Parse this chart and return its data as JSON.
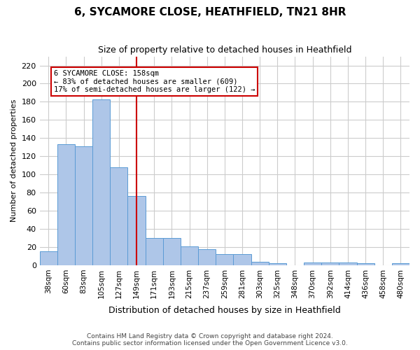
{
  "title": "6, SYCAMORE CLOSE, HEATHFIELD, TN21 8HR",
  "subtitle": "Size of property relative to detached houses in Heathfield",
  "xlabel": "Distribution of detached houses by size in Heathfield",
  "ylabel": "Number of detached properties",
  "categories": [
    "38sqm",
    "60sqm",
    "83sqm",
    "105sqm",
    "127sqm",
    "149sqm",
    "171sqm",
    "193sqm",
    "215sqm",
    "237sqm",
    "259sqm",
    "281sqm",
    "303sqm",
    "325sqm",
    "348sqm",
    "370sqm",
    "392sqm",
    "414sqm",
    "436sqm",
    "458sqm",
    "480sqm"
  ],
  "values": [
    15,
    133,
    131,
    183,
    108,
    76,
    30,
    30,
    21,
    18,
    12,
    12,
    4,
    2,
    0,
    3,
    3,
    3,
    2,
    0,
    2
  ],
  "bar_color": "#AEC6E8",
  "bar_edge_color": "#5B9BD5",
  "vline_x": 5.0,
  "vline_color": "#CC0000",
  "annotation_line1": "6 SYCAMORE CLOSE: 158sqm",
  "annotation_line2": "← 83% of detached houses are smaller (609)",
  "annotation_line3": "17% of semi-detached houses are larger (122) →",
  "annotation_box_color": "#CC0000",
  "ylim": [
    0,
    230
  ],
  "yticks": [
    0,
    20,
    40,
    60,
    80,
    100,
    120,
    140,
    160,
    180,
    200,
    220
  ],
  "grid_color": "#CCCCCC",
  "background_color": "#FFFFFF",
  "footer1": "Contains HM Land Registry data © Crown copyright and database right 2024.",
  "footer2": "Contains public sector information licensed under the Open Government Licence v3.0."
}
